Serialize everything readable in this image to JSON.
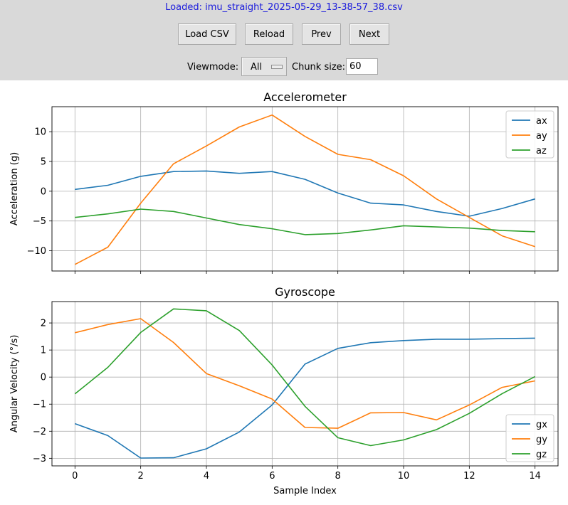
{
  "status": "Loaded: imu_straight_2025-05-29_13-38-57_38.csv",
  "buttons": {
    "load": "Load CSV",
    "reload": "Reload",
    "prev": "Prev",
    "next": "Next"
  },
  "viewmode": {
    "label": "Viewmode:",
    "value": "All"
  },
  "chunk": {
    "label": "Chunk size:",
    "value": "60"
  },
  "colors": {
    "x": "#1f77b4",
    "y": "#ff7f0e",
    "z": "#2ca02c",
    "toolbar_bg": "#d9d9d9",
    "status_text": "#1a1adc"
  },
  "chart_data": [
    {
      "type": "line",
      "title": "Accelerometer",
      "xlabel": "",
      "ylabel": "Acceleration (g)",
      "x": [
        0,
        1,
        2,
        3,
        4,
        5,
        6,
        7,
        8,
        9,
        10,
        11,
        12,
        13,
        14
      ],
      "xlim": [
        -0.7,
        14.7
      ],
      "ylim": [
        -13.4,
        14.2
      ],
      "yticks": [
        -10,
        -5,
        0,
        5,
        10
      ],
      "xticks": [
        0,
        2,
        4,
        6,
        8,
        10,
        12,
        14
      ],
      "grid": true,
      "legend": "top-right",
      "series": [
        {
          "name": "ax",
          "color": "#1f77b4",
          "values": [
            0.3,
            1.0,
            2.5,
            3.3,
            3.4,
            3.0,
            3.3,
            2.0,
            -0.3,
            -2.0,
            -2.3,
            -3.4,
            -4.2,
            -2.9,
            -1.3
          ]
        },
        {
          "name": "ay",
          "color": "#ff7f0e",
          "values": [
            -12.3,
            -9.4,
            -2.0,
            4.6,
            7.6,
            10.8,
            12.8,
            9.2,
            6.2,
            5.3,
            2.6,
            -1.3,
            -4.4,
            -7.5,
            -9.3
          ]
        },
        {
          "name": "az",
          "color": "#2ca02c",
          "values": [
            -4.4,
            -3.8,
            -3.0,
            -3.4,
            -4.5,
            -5.6,
            -6.3,
            -7.3,
            -7.1,
            -6.5,
            -5.8,
            -6.0,
            -6.2,
            -6.6,
            -6.8
          ]
        }
      ]
    },
    {
      "type": "line",
      "title": "Gyroscope",
      "xlabel": "Sample Index",
      "ylabel": "Angular Velocity (°/s)",
      "x": [
        0,
        1,
        2,
        3,
        4,
        5,
        6,
        7,
        8,
        9,
        10,
        11,
        12,
        13,
        14
      ],
      "xlim": [
        -0.7,
        14.7
      ],
      "ylim": [
        -3.28,
        2.79
      ],
      "yticks": [
        -3,
        -2,
        -1,
        0,
        1,
        2
      ],
      "xticks": [
        0,
        2,
        4,
        6,
        8,
        10,
        12,
        14
      ],
      "grid": true,
      "legend": "bottom-right",
      "series": [
        {
          "name": "gx",
          "color": "#1f77b4",
          "values": [
            -1.72,
            -2.16,
            -2.99,
            -2.98,
            -2.65,
            -2.03,
            -1.03,
            0.48,
            1.06,
            1.27,
            1.35,
            1.4,
            1.4,
            1.42,
            1.44
          ]
        },
        {
          "name": "gy",
          "color": "#ff7f0e",
          "values": [
            1.64,
            1.94,
            2.16,
            1.28,
            0.13,
            -0.32,
            -0.81,
            -1.86,
            -1.89,
            -1.32,
            -1.31,
            -1.58,
            -1.03,
            -0.38,
            -0.14
          ]
        },
        {
          "name": "gz",
          "color": "#2ca02c",
          "values": [
            -0.62,
            0.36,
            1.65,
            2.52,
            2.45,
            1.72,
            0.45,
            -1.08,
            -2.24,
            -2.53,
            -2.32,
            -1.94,
            -1.34,
            -0.61,
            0.02
          ]
        }
      ]
    }
  ]
}
